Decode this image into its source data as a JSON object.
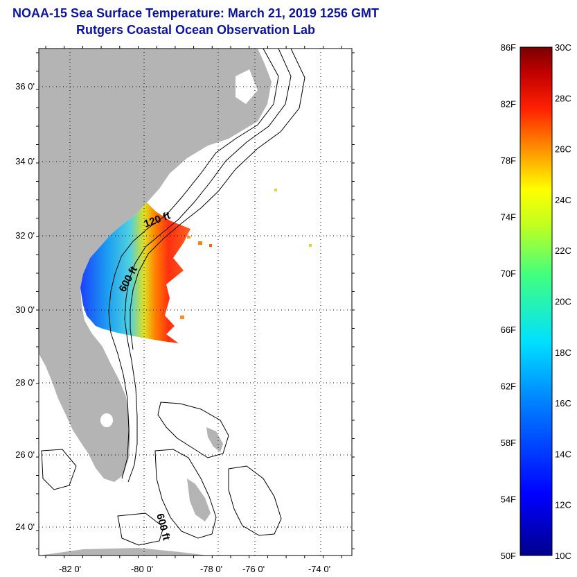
{
  "title": {
    "line1": "NOAA-15 Sea Surface Temperature:  March 21, 2019 1256 GMT",
    "line2": "Rutgers Coastal Ocean Observation Lab"
  },
  "map": {
    "lat_labels": [
      "36 0'",
      "34 0'",
      "32 0'",
      "30 0'",
      "28 0'",
      "26 0'",
      "24 0'"
    ],
    "lon_labels": [
      "-82 0'",
      "-80 0'",
      "-78 0'",
      "-76 0'",
      "-74 0'"
    ],
    "contour_labels": [
      "120 ft",
      "600 ft",
      "600 ft"
    ],
    "land_color": "#b4b4b4",
    "water_color": "#ffffff"
  },
  "colorbar": {
    "f_labels": [
      "86F",
      "82F",
      "78F",
      "74F",
      "70F",
      "66F",
      "62F",
      "58F",
      "54F",
      "50F"
    ],
    "c_labels": [
      "30C",
      "28C",
      "26C",
      "24C",
      "22C",
      "20C",
      "18C",
      "16C",
      "14C",
      "12C",
      "10C"
    ],
    "min_color": "#00008c",
    "max_color": "#7a0000"
  }
}
